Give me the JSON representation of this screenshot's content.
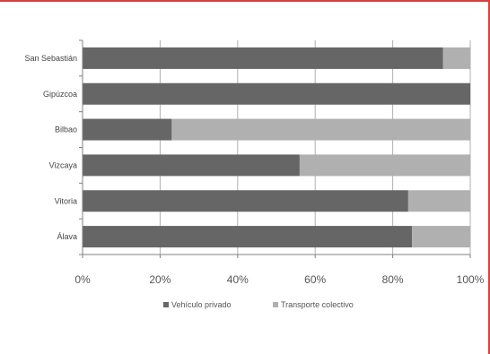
{
  "colors": {
    "frame": "#d84040",
    "axis": "#808080",
    "grid": "#b0b0b0"
  },
  "chart_data": {
    "type": "bar",
    "orientation": "horizontal",
    "stacked": "100%",
    "categories": [
      "San Sebastián",
      "Gipúzcoa",
      "Bilbao",
      "Vizcaya",
      "Vitoria",
      "Álava"
    ],
    "series": [
      {
        "name": "Vehículo privado",
        "values": [
          93,
          100,
          23,
          56,
          84,
          85
        ],
        "color": "#666666"
      },
      {
        "name": "Transporte colectivo",
        "values": [
          7,
          0,
          77,
          44,
          16,
          15
        ],
        "color": "#b0b0b0"
      }
    ],
    "x_ticks": [
      "0%",
      "20%",
      "40%",
      "60%",
      "80%",
      "100%"
    ],
    "xlim": [
      0,
      100
    ],
    "grid": true,
    "legend": "bottom",
    "title": "",
    "xlabel": "",
    "ylabel": ""
  }
}
